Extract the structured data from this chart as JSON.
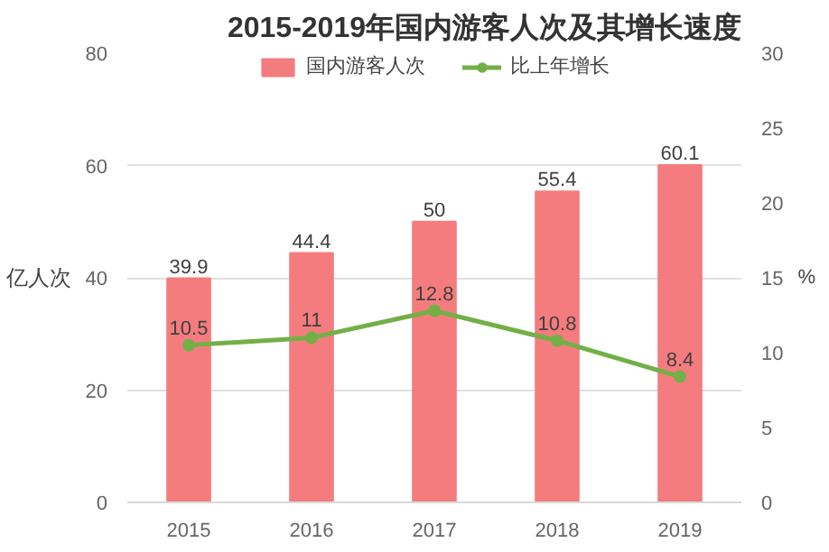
{
  "chart_data": {
    "type": "bar",
    "title": "2015-2019年国内游客人次及其增长速度",
    "ylabel": "亿人次",
    "y2label": "%",
    "categories": [
      "2015",
      "2016",
      "2017",
      "2018",
      "2019"
    ],
    "series": [
      {
        "name": "国内游客人次",
        "color": "#f47c7e",
        "values": [
          39.9,
          44.4,
          50,
          55.4,
          60.1
        ]
      },
      {
        "name": "比上年增长",
        "type": "line",
        "axis": "y2",
        "color": "#72b046",
        "values": [
          10.5,
          11,
          12.8,
          10.8,
          8.4
        ]
      }
    ],
    "ylim": [
      0,
      80
    ],
    "yticks": [
      0,
      20,
      40,
      60,
      80
    ],
    "y2lim": [
      0,
      30
    ],
    "y2ticks": [
      0,
      5,
      10,
      15,
      20,
      25,
      30
    ],
    "grid": "y",
    "legend": "top",
    "marker": "circle",
    "data_labels": true
  }
}
